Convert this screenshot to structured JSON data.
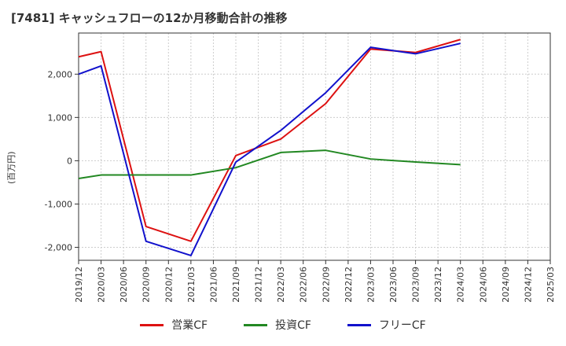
{
  "title": "[7481]  キャッシュフローの12か月移動合計の推移",
  "chart_data": {
    "type": "line",
    "title": "[7481]  キャッシュフローの12か月移動合計の推移",
    "ylabel": "(百万円)",
    "xlabel": "",
    "ylim": [
      -2300,
      2950
    ],
    "yticks": [
      -2000,
      -1000,
      0,
      1000,
      2000
    ],
    "ytick_labels": [
      "-2,000",
      "-1,000",
      "0",
      "1,000",
      "2,000"
    ],
    "categories": [
      "2019/12",
      "2020/03",
      "2020/06",
      "2020/09",
      "2020/12",
      "2021/03",
      "2021/06",
      "2021/09",
      "2021/12",
      "2022/03",
      "2022/06",
      "2022/09",
      "2022/12",
      "2023/03",
      "2023/06",
      "2023/09",
      "2023/12",
      "2024/03",
      "2024/06",
      "2024/09",
      "2024/12",
      "2025/03"
    ],
    "grid": true,
    "legend": "bottom",
    "series": [
      {
        "name": "営業CF",
        "color": "#dd1111",
        "values": [
          2400,
          2520,
          null,
          -1520,
          null,
          -1860,
          null,
          120,
          null,
          500,
          null,
          1320,
          null,
          2580,
          null,
          2500,
          null,
          2800,
          null,
          null,
          null,
          null
        ]
      },
      {
        "name": "投資CF",
        "color": "#228822",
        "values": [
          -410,
          -330,
          null,
          null,
          null,
          -330,
          null,
          -160,
          null,
          190,
          null,
          240,
          null,
          40,
          null,
          -30,
          null,
          -90,
          null,
          null,
          null,
          null
        ]
      },
      {
        "name": "フリーCF",
        "color": "#1111cc",
        "values": [
          2000,
          2190,
          null,
          -1860,
          null,
          -2190,
          null,
          -30,
          null,
          700,
          null,
          1570,
          null,
          2620,
          null,
          2470,
          null,
          2710,
          null,
          null,
          null,
          null
        ]
      }
    ]
  }
}
